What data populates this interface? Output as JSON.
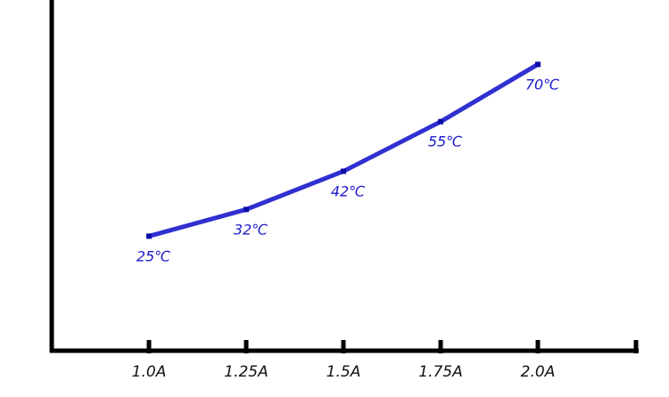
{
  "chart_data": {
    "type": "line",
    "categories": [
      "1.0A",
      "1.25A",
      "1.5A",
      "1.75A",
      "2.0A"
    ],
    "x": [
      1.0,
      1.25,
      1.5,
      1.75,
      2.0
    ],
    "series": [
      {
        "values": [
          25,
          32,
          42,
          55,
          70
        ],
        "labels": [
          "25℃",
          "32℃",
          "42℃",
          "55℃",
          "70℃"
        ]
      }
    ],
    "title": "",
    "xlabel": "",
    "ylabel": "",
    "ylim": [
      -5,
      85
    ],
    "grid": false,
    "legend": "none",
    "colors": {
      "line": "#1a1acc",
      "label": "#1a1acc",
      "axis": "#000000"
    }
  }
}
